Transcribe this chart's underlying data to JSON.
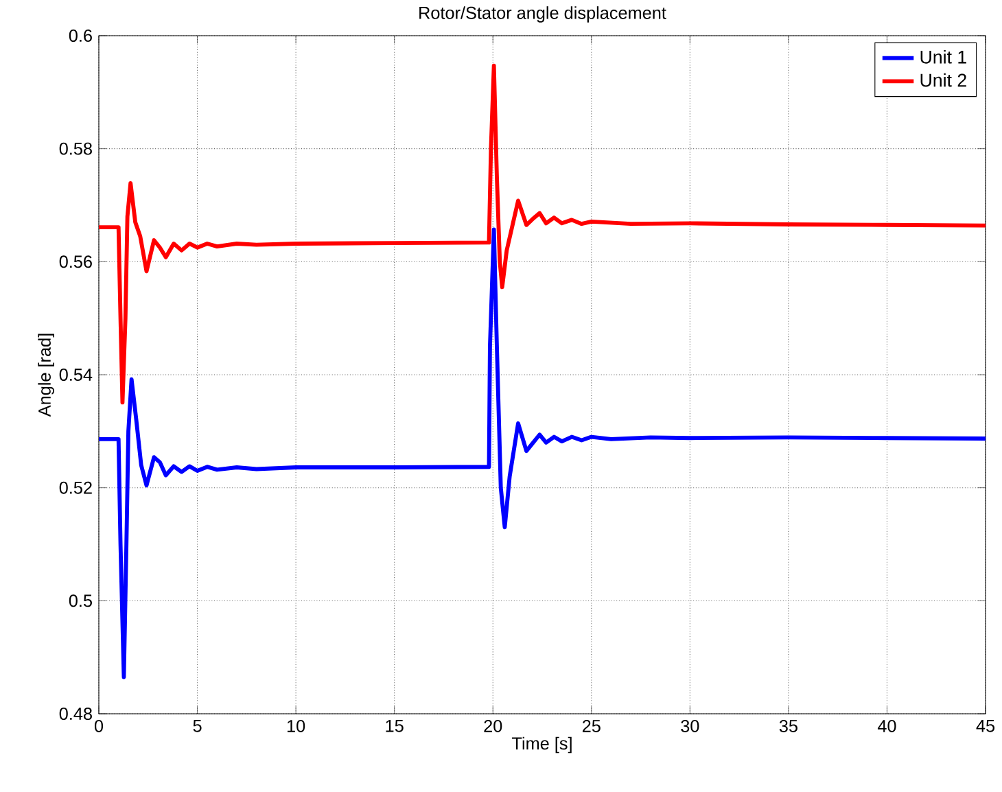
{
  "chart_data": {
    "type": "line",
    "title": "Rotor/Stator angle displacement",
    "xlabel": "Time [s]",
    "ylabel": "Angle [rad]",
    "xlim": [
      0,
      45
    ],
    "ylim": [
      0.48,
      0.6
    ],
    "xticks": [
      0,
      5,
      10,
      15,
      20,
      25,
      30,
      35,
      40,
      45
    ],
    "yticks": [
      0.48,
      0.5,
      0.52,
      0.54,
      0.56,
      0.58,
      0.6
    ],
    "grid": true,
    "legend": "top right",
    "line_style": "solid",
    "series": [
      {
        "name": "Unit 1",
        "color": "#0000ff",
        "x": [
          0,
          1.0,
          1.1,
          1.27,
          1.4,
          1.5,
          1.66,
          1.9,
          2.15,
          2.42,
          2.8,
          3.1,
          3.4,
          3.8,
          4.2,
          4.6,
          5.0,
          5.5,
          6,
          7,
          8,
          10,
          15,
          19.8,
          19.85,
          20.05,
          20.2,
          20.4,
          20.6,
          20.85,
          21.28,
          21.7,
          22.0,
          22.37,
          22.7,
          23.1,
          23.5,
          24,
          24.5,
          25,
          26,
          28,
          30,
          35,
          40,
          45
        ],
        "values": [
          0.5286,
          0.5286,
          0.51,
          0.4865,
          0.51,
          0.53,
          0.5392,
          0.532,
          0.524,
          0.5204,
          0.5254,
          0.5245,
          0.5222,
          0.5238,
          0.5228,
          0.5238,
          0.523,
          0.5237,
          0.5232,
          0.5236,
          0.5233,
          0.5236,
          0.5236,
          0.5237,
          0.545,
          0.5657,
          0.545,
          0.52,
          0.513,
          0.522,
          0.5314,
          0.5265,
          0.5278,
          0.5294,
          0.528,
          0.529,
          0.5282,
          0.529,
          0.5284,
          0.529,
          0.5286,
          0.5289,
          0.5288,
          0.5289,
          0.5288,
          0.5287
        ]
      },
      {
        "name": "Unit 2",
        "color": "#ff0000",
        "x": [
          0,
          1.0,
          1.1,
          1.2,
          1.35,
          1.45,
          1.61,
          1.85,
          2.1,
          2.42,
          2.8,
          3.1,
          3.4,
          3.8,
          4.2,
          4.6,
          5,
          5.5,
          6,
          7,
          8,
          10,
          15,
          19.8,
          19.9,
          20.05,
          20.2,
          20.35,
          20.47,
          20.7,
          21.28,
          21.7,
          22.0,
          22.37,
          22.7,
          23.1,
          23.5,
          24,
          24.5,
          25,
          27,
          30,
          35,
          40,
          45
        ],
        "values": [
          0.5661,
          0.5661,
          0.55,
          0.5351,
          0.55,
          0.568,
          0.5739,
          0.567,
          0.5645,
          0.5583,
          0.5638,
          0.5625,
          0.5608,
          0.5632,
          0.562,
          0.5632,
          0.5625,
          0.5632,
          0.5627,
          0.5632,
          0.563,
          0.5632,
          0.5633,
          0.5634,
          0.58,
          0.5947,
          0.575,
          0.56,
          0.5555,
          0.562,
          0.5708,
          0.5665,
          0.5675,
          0.5686,
          0.5668,
          0.5678,
          0.5668,
          0.5674,
          0.5667,
          0.5671,
          0.5667,
          0.5668,
          0.5666,
          0.5665,
          0.5664
        ]
      }
    ]
  }
}
